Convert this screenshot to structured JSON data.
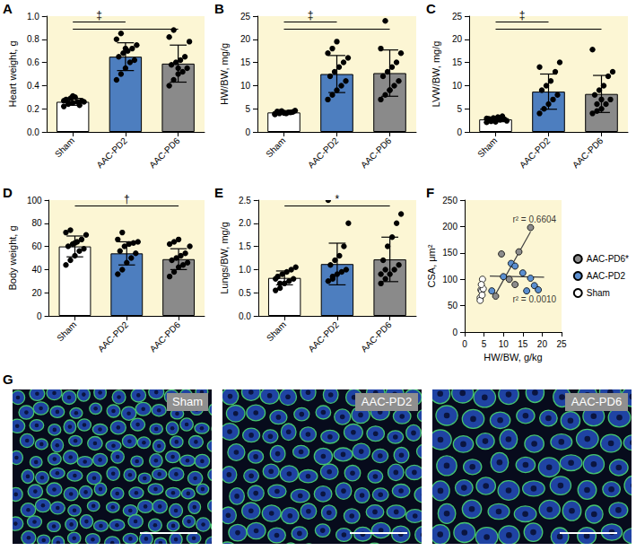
{
  "chart_data": [
    {
      "panel": "A",
      "type": "bar",
      "y_label": "Heart weight, g",
      "categories": [
        "Sham",
        "AAC-PD2",
        "AAC-PD6"
      ],
      "values": [
        0.26,
        0.65,
        0.59
      ],
      "sd": [
        0.03,
        0.12,
        0.16
      ],
      "points": [
        [
          0.22,
          0.24,
          0.25,
          0.26,
          0.27,
          0.28,
          0.29,
          0.3,
          0.23,
          0.26,
          0.27,
          0.25,
          0.31
        ],
        [
          0.45,
          0.5,
          0.55,
          0.6,
          0.62,
          0.65,
          0.68,
          0.7,
          0.72,
          0.75,
          0.8,
          0.85,
          0.72
        ],
        [
          0.4,
          0.45,
          0.5,
          0.52,
          0.55,
          0.58,
          0.6,
          0.62,
          0.65,
          0.78,
          0.82,
          0.88,
          0.55
        ]
      ],
      "colors": [
        "#ffffff",
        "#4d7ebf",
        "#8a8a8a"
      ],
      "ylim": [
        0,
        1
      ],
      "yticks": [
        {
          "value": 0,
          "label": "0.0"
        },
        0.2,
        0.4,
        0.6,
        0.8,
        {
          "value": 1,
          "label": "1.0"
        }
      ],
      "significance": {
        "label": "‡",
        "vs": "Sham",
        "groups": [
          "AAC-PD2",
          "AAC-PD6"
        ]
      }
    },
    {
      "panel": "B",
      "type": "bar",
      "y_label": "HW/BW, mg/g",
      "categories": [
        "Sham",
        "AAC-PD2",
        "AAC-PD6"
      ],
      "values": [
        4.2,
        12.5,
        12.7
      ],
      "sd": [
        0.4,
        4.0,
        5.0
      ],
      "points": [
        [
          3.8,
          4.0,
          4.1,
          4.2,
          4.3,
          4.4,
          4.5,
          4.0,
          4.2,
          4.6,
          3.9,
          4.3,
          4.1
        ],
        [
          7,
          8,
          9,
          10,
          11,
          12,
          13,
          14,
          15,
          16,
          17,
          18,
          19.5
        ],
        [
          7,
          8,
          9,
          10,
          11,
          12,
          13,
          14,
          15,
          17,
          18,
          24,
          9
        ]
      ],
      "colors": [
        "#ffffff",
        "#4d7ebf",
        "#8a8a8a"
      ],
      "ylim": [
        0,
        25
      ],
      "yticks": [
        0,
        5,
        10,
        15,
        20,
        25
      ],
      "significance": {
        "label": "‡",
        "vs": "Sham",
        "groups": [
          "AAC-PD2",
          "AAC-PD6"
        ]
      }
    },
    {
      "panel": "C",
      "type": "bar",
      "y_label": "LVW/BW, mg/g",
      "categories": [
        "Sham",
        "AAC-PD2",
        "AAC-PD6"
      ],
      "values": [
        2.7,
        8.7,
        8.2
      ],
      "sd": [
        0.5,
        3.8,
        4.0
      ],
      "points": [
        [
          2.1,
          2.3,
          2.5,
          2.6,
          2.7,
          2.8,
          3.0,
          3.2,
          3.4,
          2.4,
          2.9,
          2.6,
          2.2
        ],
        [
          4,
          5,
          6,
          7,
          8,
          9,
          10,
          11,
          13,
          15,
          14
        ],
        [
          4,
          4.5,
          5,
          6,
          7,
          8,
          9,
          10,
          12,
          13,
          17.8,
          6,
          7
        ]
      ],
      "colors": [
        "#ffffff",
        "#4d7ebf",
        "#8a8a8a"
      ],
      "ylim": [
        0,
        25
      ],
      "yticks": [
        0,
        5,
        10,
        15,
        20,
        25
      ],
      "significance": {
        "label": "‡",
        "vs": "Sham",
        "groups": [
          "AAC-PD2",
          "AAC-PD6"
        ]
      }
    },
    {
      "panel": "D",
      "type": "bar",
      "y_label": "Body weight, g",
      "categories": [
        "Sham",
        "AAC-PD2",
        "AAC-PD6"
      ],
      "values": [
        60,
        54,
        49
      ],
      "sd": [
        9,
        10,
        9
      ],
      "points": [
        [
          44,
          48,
          52,
          56,
          58,
          60,
          62,
          64,
          66,
          70,
          72,
          74,
          63
        ],
        [
          36,
          40,
          46,
          50,
          54,
          56,
          60,
          62,
          63,
          64,
          66,
          72
        ],
        [
          34,
          38,
          42,
          44,
          46,
          48,
          50,
          52,
          54,
          60,
          62,
          64,
          66
        ]
      ],
      "colors": [
        "#ffffff",
        "#4d7ebf",
        "#8a8a8a"
      ],
      "ylim": [
        0,
        100
      ],
      "yticks": [
        0,
        20,
        40,
        60,
        80,
        100
      ],
      "significance": {
        "label": "†",
        "vs": "Sham",
        "groups": [
          "AAC-PD6"
        ]
      }
    },
    {
      "panel": "E",
      "type": "bar",
      "y_label": "Lungs/BW, mg/g",
      "categories": [
        "Sham",
        "AAC-PD2",
        "AAC-PD6"
      ],
      "values": [
        0.82,
        1.12,
        1.22
      ],
      "sd": [
        0.15,
        0.45,
        0.48
      ],
      "points": [
        [
          0.55,
          0.6,
          0.7,
          0.75,
          0.8,
          0.85,
          0.9,
          0.95,
          1.0,
          1.05,
          0.8,
          0.7
        ],
        [
          0.75,
          0.8,
          0.9,
          0.95,
          1.0,
          1.1,
          1.2,
          1.3,
          1.5,
          2.0,
          2.5,
          0.85
        ],
        [
          0.7,
          0.8,
          0.9,
          1.0,
          1.1,
          1.2,
          1.5,
          1.7,
          2.0,
          2.2,
          0.9,
          1.0
        ]
      ],
      "colors": [
        "#ffffff",
        "#4d7ebf",
        "#8a8a8a"
      ],
      "ylim": [
        0,
        2.5
      ],
      "yticks": [
        {
          "value": 0,
          "label": "0.0"
        },
        0.5,
        {
          "value": 1,
          "label": "1.0"
        },
        1.5,
        {
          "value": 2,
          "label": "2.0"
        },
        2.5
      ],
      "significance": {
        "label": "*",
        "vs": "Sham",
        "groups": [
          "AAC-PD6"
        ]
      }
    },
    {
      "panel": "F",
      "type": "scatter",
      "x_label": "HW/BW, g/kg",
      "y_label": "CSA, μm²",
      "xlim": [
        0,
        25
      ],
      "xticks": [
        0,
        5,
        10,
        15,
        20,
        25
      ],
      "ylim": [
        0,
        250
      ],
      "yticks": [
        0,
        50,
        100,
        150,
        200,
        250
      ],
      "legend": "right",
      "marker": "circle",
      "series": [
        {
          "name": "AAC-PD6*",
          "color": "#8c8c8c",
          "x": [
            8,
            9.5,
            11.5,
            14,
            17,
            13
          ],
          "values": [
            68,
            148,
            100,
            152,
            198,
            90
          ]
        },
        {
          "name": "AAC-PD2",
          "color": "#5b8fd0",
          "x": [
            7,
            10,
            12,
            13,
            15,
            16,
            18,
            19,
            17
          ],
          "values": [
            78,
            105,
            130,
            125,
            112,
            78,
            88,
            80,
            102
          ]
        },
        {
          "name": "Sham",
          "color": "#ffffff",
          "x": [
            4,
            4,
            4.2,
            4.4,
            4.6,
            4.5,
            4.8,
            4.3
          ],
          "values": [
            65,
            60,
            80,
            78,
            100,
            70,
            82,
            90
          ]
        }
      ],
      "trend_lines": [
        {
          "color": "#404040",
          "x": [
            8,
            17
          ],
          "values": [
            72,
            190
          ]
        },
        {
          "color": "#404040",
          "x": [
            6.5,
            20.5
          ],
          "values": [
            106,
            104
          ]
        }
      ],
      "annotations": [
        {
          "text": "r² = 0.6604",
          "x": 18,
          "y": 214
        },
        {
          "text": "r² = 0.0010",
          "x": 18,
          "y": 62
        }
      ]
    }
  ],
  "image_panel": {
    "panel": "G",
    "images": [
      {
        "label": "Sham"
      },
      {
        "label": "AAC-PD2"
      },
      {
        "label": "AAC-PD6"
      }
    ]
  }
}
